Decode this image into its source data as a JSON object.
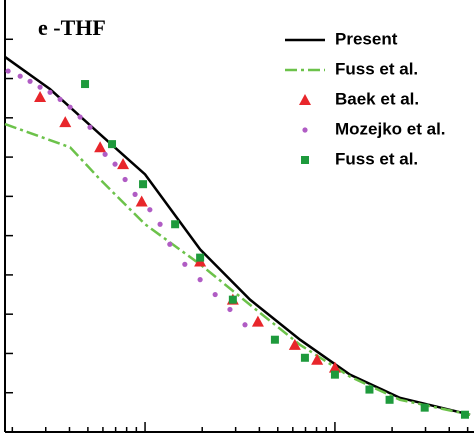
{
  "chart_data": {
    "type": "line",
    "title": "e -THF",
    "xscale": "log",
    "xlim": [
      1.83,
      540
    ],
    "ylim": [
      0,
      11
    ],
    "xticks": [
      2,
      3,
      4,
      5,
      6,
      7,
      8,
      9,
      10,
      20,
      30,
      40,
      50,
      60,
      70,
      80,
      90,
      100,
      200,
      300,
      400,
      500
    ],
    "yticks": [
      1,
      2,
      3,
      4,
      5,
      6,
      7,
      8,
      9,
      10
    ],
    "legend": "upper right",
    "series": [
      {
        "name": "Present",
        "color": "#000000",
        "mode": "line",
        "dash": "solid",
        "x": [
          1.83,
          3.16,
          5.8,
          10,
          19.5,
          35.7,
          65.5,
          120,
          220,
          515
        ],
        "values": [
          9.55,
          8.73,
          7.58,
          6.56,
          4.65,
          3.37,
          2.35,
          1.46,
          0.87,
          0.44
        ]
      },
      {
        "name": "Fuss et al.",
        "color": "#6cc24a",
        "mode": "line",
        "dash": "dashdot",
        "x": [
          1.83,
          4.03,
          5.8,
          10,
          19.5,
          35.7,
          65.5,
          120,
          220,
          515
        ],
        "values": [
          7.84,
          7.25,
          6.43,
          5.29,
          4.27,
          3.24,
          2.22,
          1.41,
          0.82,
          0.44
        ]
      },
      {
        "name": "Baek et al.",
        "color": "#e8262b",
        "mode": "marker",
        "marker": "triangle",
        "x": [
          2.8,
          3.8,
          5.8,
          7.66,
          9.6,
          19.5,
          29,
          39.3,
          61.5,
          80.6,
          100
        ],
        "values": [
          8.53,
          7.89,
          7.25,
          6.82,
          5.87,
          4.34,
          3.37,
          2.81,
          2.22,
          1.84,
          1.64
        ]
      },
      {
        "name": "Mozejko et al.",
        "color": "#b05cc4",
        "mode": "marker",
        "marker": "circle",
        "x": [
          1.9,
          2.2,
          2.48,
          2.8,
          3.16,
          3.57,
          4.03,
          4.55,
          5.13,
          6.16,
          6.95,
          7.85,
          8.86,
          10.6,
          12.0,
          13.5,
          16.2,
          19.5,
          23.4,
          28.0,
          33.6
        ],
        "values": [
          9.19,
          9.06,
          8.93,
          8.78,
          8.65,
          8.47,
          8.27,
          8.02,
          7.76,
          7.07,
          6.82,
          6.43,
          6.05,
          5.66,
          5.29,
          4.78,
          4.27,
          3.88,
          3.5,
          3.12,
          2.73
        ]
      },
      {
        "name": "Fuss et al.",
        "color": "#1e9a3c",
        "mode": "marker",
        "marker": "square",
        "x": [
          4.83,
          6.7,
          9.76,
          14.4,
          19.5,
          29,
          48.3,
          69.5,
          100,
          152,
          194,
          297,
          484
        ],
        "values": [
          8.86,
          7.33,
          6.31,
          5.29,
          4.44,
          3.37,
          2.35,
          1.89,
          1.46,
          1.08,
          0.82,
          0.62,
          0.44
        ]
      }
    ]
  }
}
